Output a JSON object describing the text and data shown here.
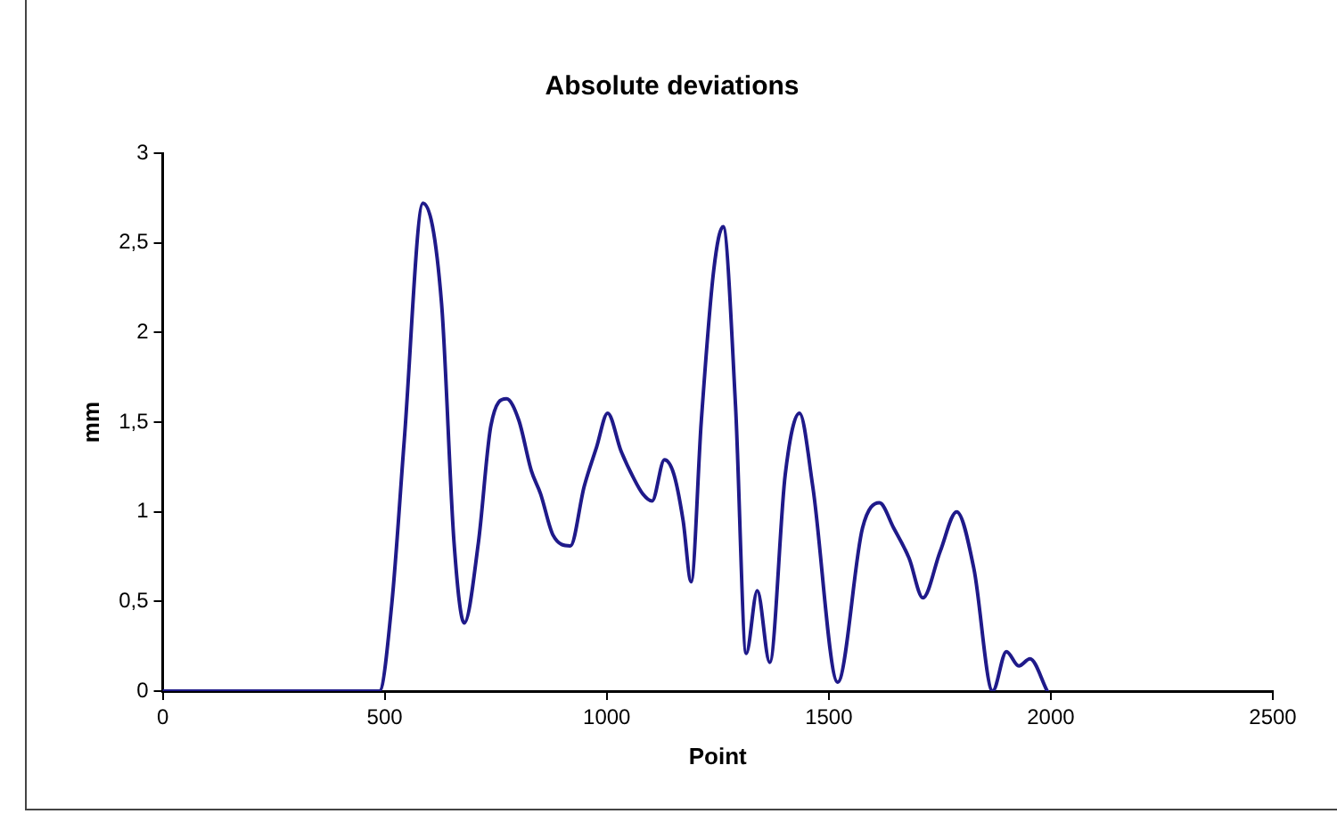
{
  "chart_data": {
    "type": "line",
    "title": "Absolute deviations",
    "xlabel": "Point",
    "ylabel": "mm",
    "xlim": [
      0,
      2500
    ],
    "xticks": [
      0,
      500,
      1000,
      1500,
      2000,
      2500
    ],
    "ylim": [
      0,
      3
    ],
    "yticks": [
      0,
      {
        "value": 0.5,
        "label": "0,5"
      },
      1,
      {
        "value": 1.5,
        "label": "1,5"
      },
      2,
      {
        "value": 2.5,
        "label": "2,5"
      },
      3
    ],
    "grid": false,
    "legend": false,
    "marker": "none",
    "line_style": "solid",
    "series": [
      {
        "color": "#1f1a8a",
        "x": [
          0,
          488,
          516,
          544,
          586,
          628,
          656,
          679,
          711,
          739,
          774,
          802,
          830,
          851,
          879,
          918,
          949,
          977,
          1002,
          1032,
          1060,
          1081,
          1102,
          1130,
          1151,
          1172,
          1190,
          1213,
          1241,
          1262,
          1290,
          1314,
          1339,
          1367,
          1402,
          1434,
          1464,
          1520,
          1576,
          1614,
          1646,
          1681,
          1712,
          1751,
          1788,
          1827,
          1869,
          1900,
          1928,
          1953,
          1992
        ],
        "values": [
          0,
          0,
          0.49,
          1.4,
          2.72,
          2.16,
          0.83,
          0.38,
          0.83,
          1.48,
          1.63,
          1.51,
          1.23,
          1.1,
          0.87,
          0.81,
          1.14,
          1.36,
          1.55,
          1.34,
          1.19,
          1.1,
          1.06,
          1.29,
          1.21,
          0.95,
          0.61,
          1.51,
          2.35,
          2.59,
          1.59,
          0.21,
          0.56,
          0.16,
          1.21,
          1.55,
          1.14,
          0.05,
          0.91,
          1.05,
          0.91,
          0.74,
          0.52,
          0.78,
          1.0,
          0.68,
          0,
          0.22,
          0.14,
          0.18,
          0
        ]
      }
    ]
  }
}
